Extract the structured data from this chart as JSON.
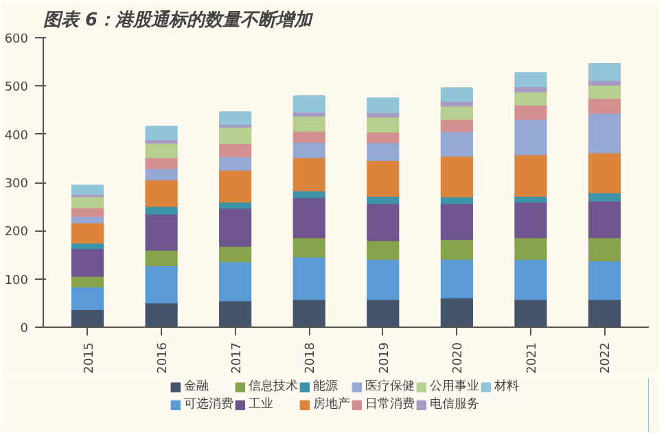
{
  "chart_data": {
    "type": "bar",
    "title": "图表 6：港股通标的数量不断增加",
    "stacked": true,
    "legend": "bottom",
    "grid": false,
    "categories": [
      "2015",
      "2016",
      "2017",
      "2018",
      "2019",
      "2020",
      "2021",
      "2022"
    ],
    "ylim": [
      0,
      600
    ],
    "yticks": [
      0,
      100,
      200,
      300,
      400,
      500,
      600
    ],
    "series": [
      {
        "name": "金融",
        "color": "#44546a",
        "values": [
          37,
          51,
          55,
          58,
          58,
          61,
          58,
          58
        ]
      },
      {
        "name": "可选消费",
        "color": "#5b9bd5",
        "values": [
          47,
          77,
          81,
          88,
          83,
          80,
          83,
          80
        ]
      },
      {
        "name": "信息技术",
        "color": "#87a34b",
        "values": [
          22,
          32,
          32,
          40,
          39,
          41,
          45,
          48
        ]
      },
      {
        "name": "工业",
        "color": "#6f568f",
        "values": [
          57,
          75,
          79,
          83,
          77,
          75,
          74,
          76
        ]
      },
      {
        "name": "能源",
        "color": "#3d93a8",
        "values": [
          12,
          16,
          13,
          14,
          15,
          14,
          12,
          17
        ]
      },
      {
        "name": "房地产",
        "color": "#dd843c",
        "values": [
          42,
          55,
          66,
          69,
          74,
          84,
          86,
          83
        ]
      },
      {
        "name": "医疗保健",
        "color": "#95a9d4",
        "values": [
          13,
          23,
          28,
          32,
          37,
          51,
          73,
          82
        ]
      },
      {
        "name": "日常消费",
        "color": "#d49090",
        "values": [
          18,
          23,
          27,
          23,
          22,
          25,
          30,
          31
        ]
      },
      {
        "name": "公用事业",
        "color": "#b8d08f",
        "values": [
          23,
          30,
          34,
          31,
          31,
          28,
          27,
          27
        ]
      },
      {
        "name": "电信服务",
        "color": "#a99ac4",
        "values": [
          5,
          7,
          6,
          8,
          9,
          10,
          11,
          10
        ]
      },
      {
        "name": "材料",
        "color": "#92c5d9",
        "values": [
          18,
          27,
          25,
          33,
          30,
          27,
          28,
          34
        ]
      }
    ]
  }
}
